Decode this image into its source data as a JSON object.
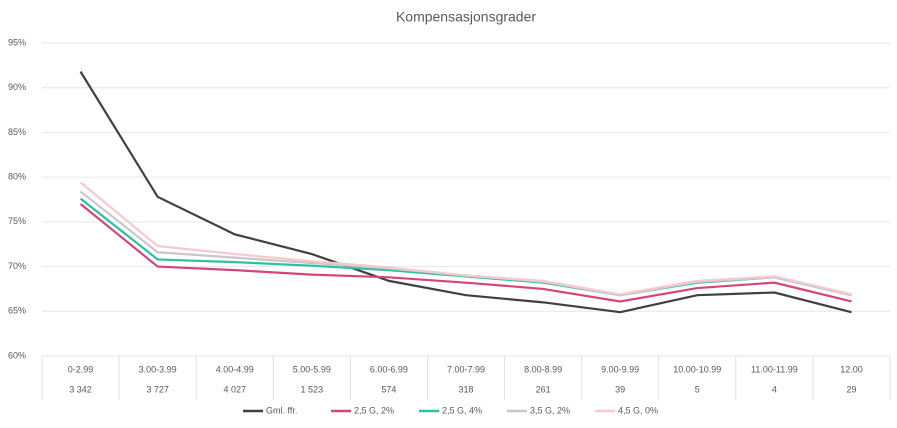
{
  "chart_data": {
    "type": "line",
    "title": "Kompensasjonsgrader",
    "categories": [
      "0-2.99",
      "3.00-3.99",
      "4.00-4.99",
      "5.00-5.99",
      "6.00-6.99",
      "7.00-7.99",
      "8.00-8.99",
      "9.00-9.99",
      "10.00-10.99",
      "11.00-11.99",
      "12.00"
    ],
    "category_counts": [
      "3 342",
      "3 727",
      "4 027",
      "1 523",
      "574",
      "318",
      "261",
      "39",
      "5",
      "4",
      "29"
    ],
    "series": [
      {
        "name": "Gml. ffr.",
        "color": "#404040",
        "values": [
          91.8,
          77.8,
          73.6,
          71.4,
          68.4,
          66.8,
          66.0,
          64.9,
          66.8,
          67.1,
          64.9
        ]
      },
      {
        "name": "2,5 G, 2%",
        "color": "#d6457a",
        "values": [
          77.0,
          70.0,
          69.6,
          69.1,
          68.8,
          68.2,
          67.5,
          66.1,
          67.6,
          68.2,
          66.1
        ]
      },
      {
        "name": "2,5 G, 4%",
        "color": "#2bbfa4",
        "values": [
          77.6,
          70.8,
          70.5,
          70.1,
          69.6,
          68.9,
          68.2,
          66.8,
          68.2,
          68.8,
          66.8
        ]
      },
      {
        "name": "3,5 G, 2%",
        "color": "#c8c8c8",
        "values": [
          78.4,
          71.6,
          71.0,
          70.4,
          69.8,
          69.0,
          68.3,
          66.8,
          68.3,
          68.8,
          66.8
        ]
      },
      {
        "name": "4,5 G, 0%",
        "color": "#f7c9cc",
        "values": [
          79.4,
          72.3,
          71.4,
          70.6,
          69.9,
          69.0,
          68.4,
          66.9,
          68.4,
          68.9,
          66.9
        ]
      }
    ],
    "ylim": [
      60,
      95
    ],
    "yticks": [
      {
        "value": 60,
        "label": "60%"
      },
      {
        "value": 65,
        "label": "65%"
      },
      {
        "value": 70,
        "label": "70%"
      },
      {
        "value": 75,
        "label": "75%"
      },
      {
        "value": 80,
        "label": "80%"
      },
      {
        "value": 85,
        "label": "85%"
      },
      {
        "value": 90,
        "label": "90%"
      },
      {
        "value": 95,
        "label": "95%"
      }
    ],
    "grid": true
  }
}
